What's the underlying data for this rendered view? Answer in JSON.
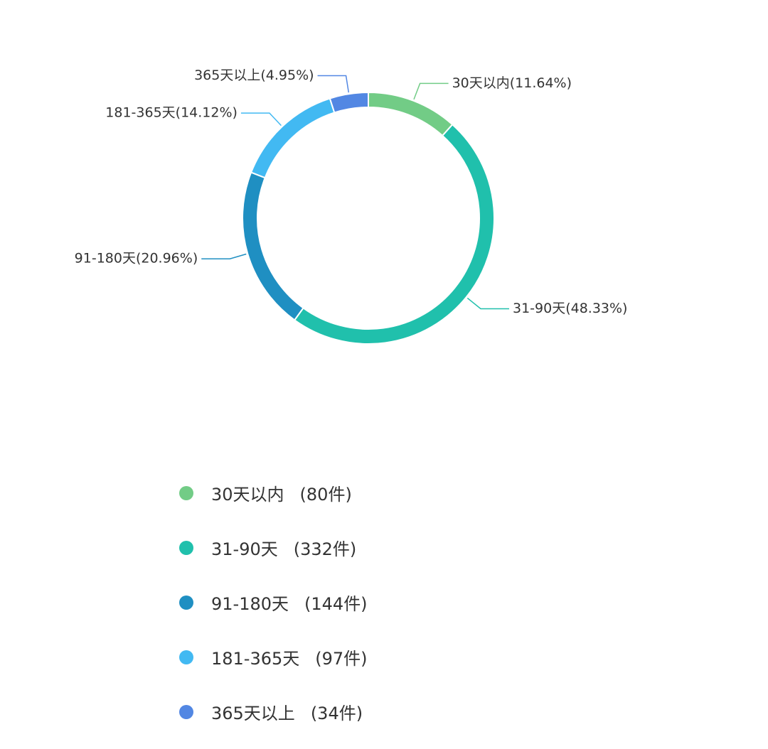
{
  "chart_data": {
    "type": "pie",
    "variant": "donut",
    "legend_position": "bottom-left",
    "slices": [
      {
        "name": "30天以内",
        "percent": 11.64,
        "percent_label": "30天以内(11.64%)",
        "count": 80,
        "count_label": "(80件)",
        "color": "#72cc86"
      },
      {
        "name": "31-90天",
        "percent": 48.33,
        "percent_label": "31-90天(48.33%)",
        "count": 332,
        "count_label": "(332件)",
        "color": "#20c0ac"
      },
      {
        "name": "91-180天",
        "percent": 20.96,
        "percent_label": "91-180天(20.96%)",
        "count": 144,
        "count_label": "(144件)",
        "color": "#1f8fc2"
      },
      {
        "name": "181-365天",
        "percent": 14.12,
        "percent_label": "181-365天(14.12%)",
        "count": 97,
        "count_label": "(97件)",
        "color": "#42b9f2"
      },
      {
        "name": "365天以上",
        "percent": 4.95,
        "percent_label": "365天以上(4.95%)",
        "count": 34,
        "count_label": "(34件)",
        "color": "#5287e3"
      }
    ]
  }
}
